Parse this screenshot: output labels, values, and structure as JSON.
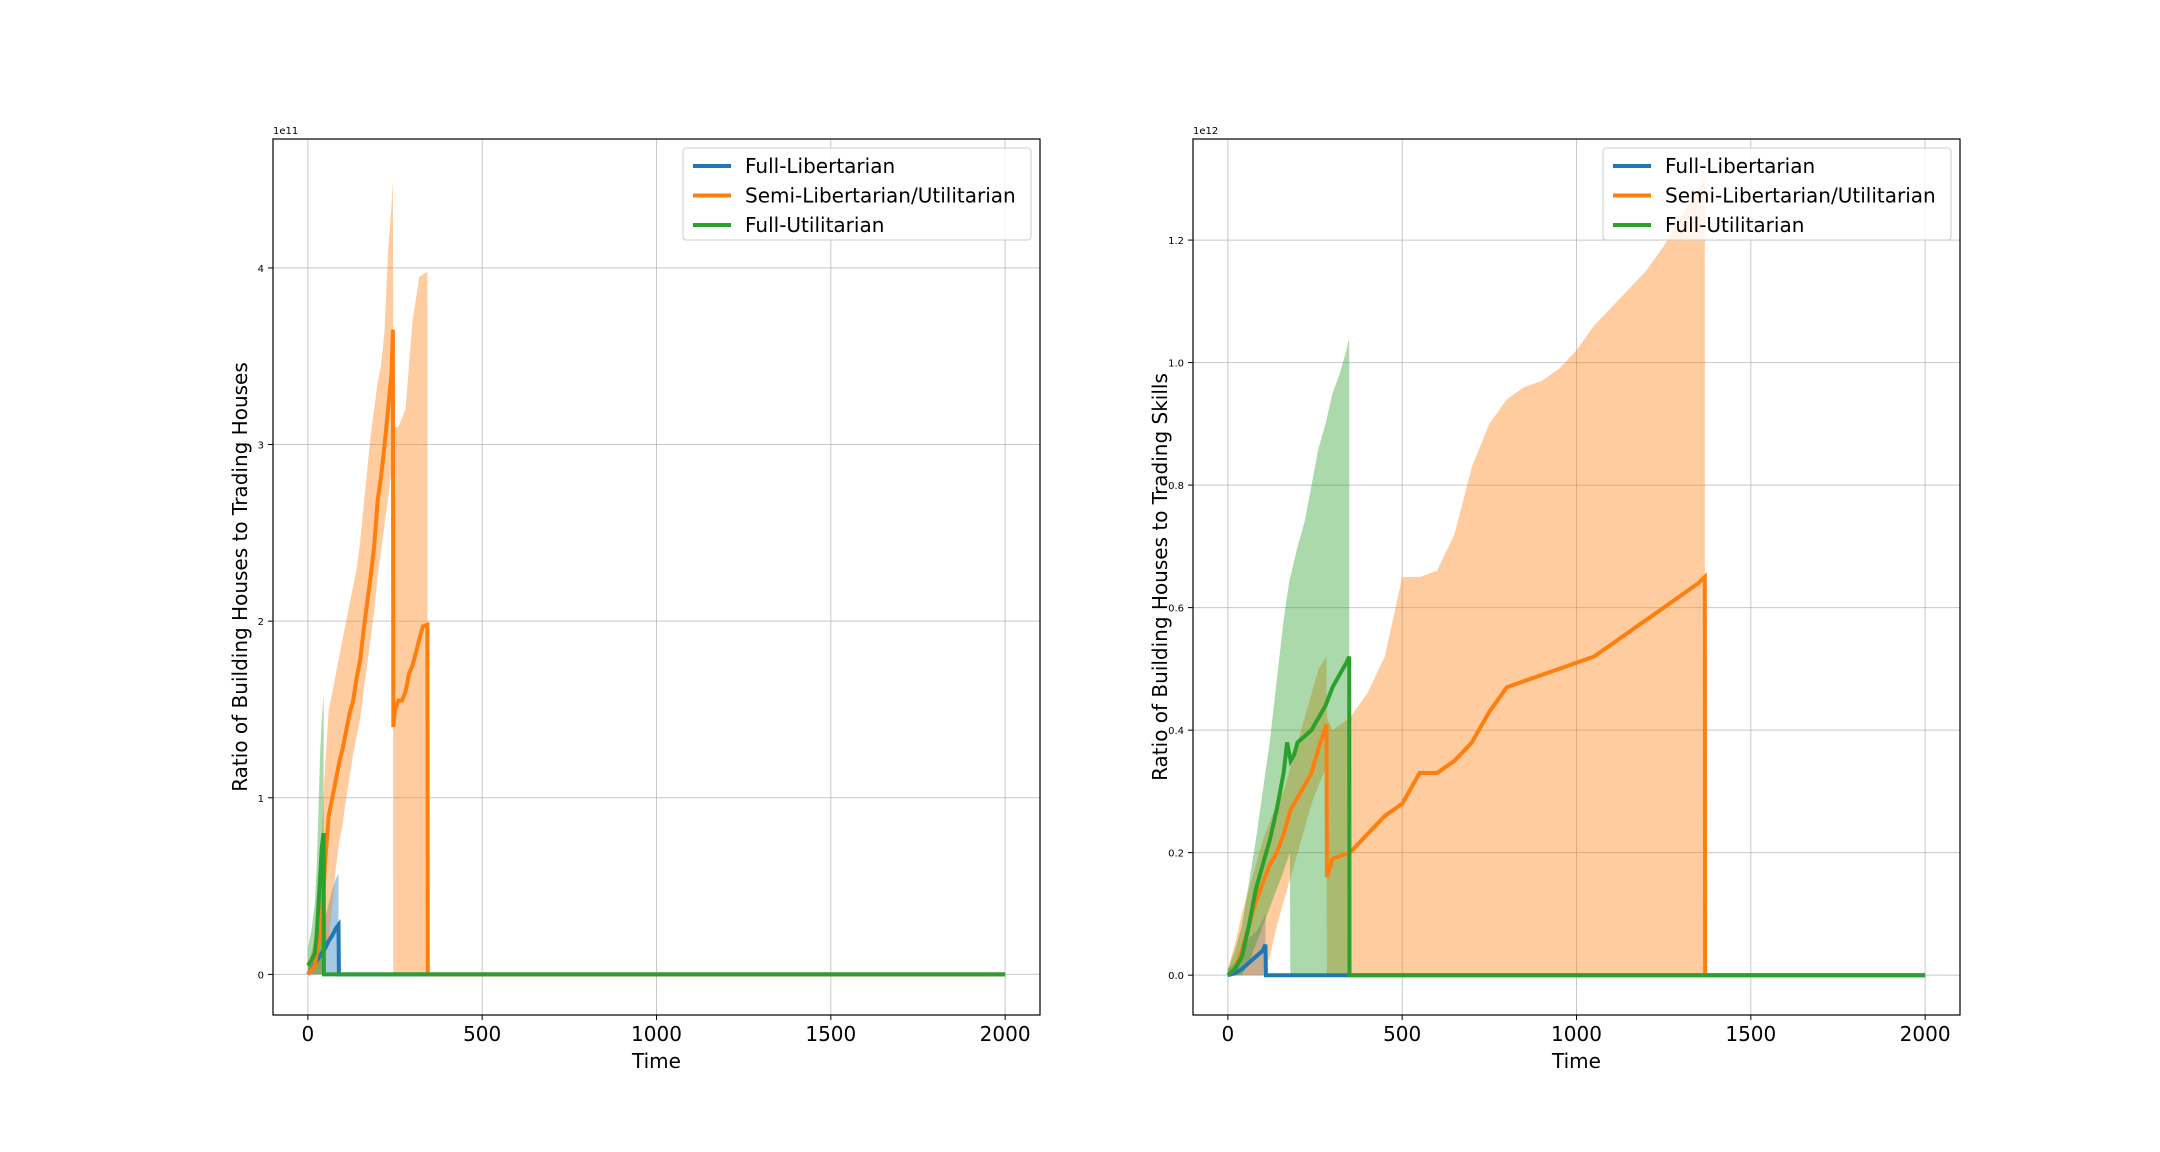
{
  "colors": {
    "series": [
      "#1f77b4",
      "#ff7f0e",
      "#2ca02c"
    ],
    "grid": "#b0b0b0",
    "frame": "#000000"
  },
  "chart_data": [
    {
      "type": "line",
      "xlabel": "Time",
      "ylabel": "Ratio of Building Houses to Trading Houses",
      "offset_text": "1e11",
      "y_scale": 100000000000,
      "xlim": [
        -100,
        2100
      ],
      "ylim": [
        -0.23,
        4.73
      ],
      "xticks": [
        0,
        500,
        1000,
        1500,
        2000
      ],
      "yticks": [
        0,
        1,
        2,
        3,
        4
      ],
      "xtick_labels": [
        "0",
        "500",
        "1000",
        "1500",
        "2000"
      ],
      "ytick_labels": [
        "0",
        "1",
        "2",
        "3",
        "4"
      ],
      "grid": true,
      "legend": "top-right",
      "series": [
        {
          "name": "Full-Libertarian",
          "x": [
            0,
            10,
            20,
            30,
            40,
            50,
            60,
            70,
            80,
            88,
            89,
            2000
          ],
          "y": [
            0,
            0.03,
            0.06,
            0.09,
            0.12,
            0.15,
            0.19,
            0.22,
            0.26,
            0.28,
            0,
            0
          ],
          "band": {
            "x": [
              0,
              10,
              20,
              30,
              40,
              50,
              60,
              70,
              80,
              88
            ],
            "lower": [
              0,
              0,
              0,
              0,
              0,
              0,
              0,
              0,
              0,
              0
            ],
            "upper": [
              0.05,
              0.1,
              0.15,
              0.2,
              0.25,
              0.32,
              0.4,
              0.48,
              0.54,
              0.57
            ]
          }
        },
        {
          "name": "Semi-Libertarian/Utilitarian",
          "x": [
            0,
            20,
            40,
            50,
            60,
            70,
            80,
            90,
            100,
            110,
            120,
            130,
            140,
            150,
            160,
            170,
            180,
            190,
            200,
            210,
            220,
            230,
            240,
            244,
            245,
            250,
            260,
            270,
            280,
            290,
            300,
            310,
            320,
            330,
            343,
            344,
            2000
          ],
          "y": [
            0,
            0.05,
            0.3,
            0.65,
            0.9,
            1.0,
            1.1,
            1.2,
            1.28,
            1.38,
            1.48,
            1.55,
            1.68,
            1.78,
            1.95,
            2.1,
            2.25,
            2.42,
            2.68,
            2.82,
            3.0,
            3.2,
            3.4,
            3.65,
            1.4,
            1.5,
            1.55,
            1.55,
            1.6,
            1.7,
            1.75,
            1.82,
            1.9,
            1.97,
            1.98,
            0,
            0
          ],
          "band": {
            "x": [
              0,
              20,
              40,
              50,
              60,
              70,
              80,
              90,
              100,
              110,
              120,
              130,
              140,
              150,
              160,
              170,
              180,
              190,
              200,
              210,
              220,
              230,
              240,
              244,
              245,
              260,
              280,
              300,
              320,
              343
            ],
            "lower": [
              0,
              0,
              0,
              0.1,
              0.2,
              0.4,
              0.6,
              0.75,
              0.85,
              1.0,
              1.12,
              1.25,
              1.35,
              1.45,
              1.6,
              1.75,
              1.9,
              2.05,
              2.25,
              2.4,
              2.55,
              2.7,
              2.85,
              2.9,
              0,
              0,
              0,
              0,
              0,
              0
            ],
            "upper": [
              0.05,
              0.2,
              0.8,
              1.2,
              1.5,
              1.6,
              1.7,
              1.8,
              1.9,
              2.0,
              2.1,
              2.2,
              2.3,
              2.45,
              2.65,
              2.85,
              3.05,
              3.2,
              3.35,
              3.45,
              3.65,
              4.1,
              4.35,
              4.5,
              3.1,
              3.1,
              3.2,
              3.7,
              3.95,
              3.98
            ]
          }
        },
        {
          "name": "Full-Utilitarian",
          "x": [
            0,
            10,
            20,
            25,
            30,
            35,
            40,
            45,
            46,
            2000
          ],
          "y": [
            0.05,
            0.08,
            0.12,
            0.22,
            0.38,
            0.55,
            0.72,
            0.8,
            0,
            0
          ],
          "band": {
            "x": [
              0,
              10,
              20,
              25,
              30,
              35,
              40,
              45
            ],
            "lower": [
              0,
              0,
              0,
              0,
              0,
              0,
              0,
              0
            ],
            "upper": [
              0.15,
              0.25,
              0.4,
              0.6,
              0.9,
              1.25,
              1.45,
              1.58
            ]
          }
        }
      ]
    },
    {
      "type": "line",
      "xlabel": "Time",
      "ylabel": "Ratio of Building Houses to Trading Skills",
      "offset_text": "1e12",
      "y_scale": 1000000000000,
      "xlim": [
        -100,
        2100
      ],
      "ylim": [
        -0.065,
        1.365
      ],
      "xticks": [
        0,
        500,
        1000,
        1500,
        2000
      ],
      "yticks": [
        0,
        0.2,
        0.4,
        0.6,
        0.8,
        1.0,
        1.2
      ],
      "xtick_labels": [
        "0",
        "500",
        "1000",
        "1500",
        "2000"
      ],
      "ytick_labels": [
        "0.0",
        "0.2",
        "0.4",
        "0.6",
        "0.8",
        "1.0",
        "1.2"
      ],
      "grid": true,
      "legend": "top-right",
      "series": [
        {
          "name": "Full-Libertarian",
          "x": [
            0,
            20,
            40,
            60,
            80,
            100,
            108,
            109,
            2000
          ],
          "y": [
            0,
            0.003,
            0.01,
            0.02,
            0.03,
            0.04,
            0.05,
            0,
            0
          ],
          "band": {
            "x": [
              0,
              20,
              40,
              60,
              80,
              100,
              108
            ],
            "lower": [
              0,
              0,
              0,
              0,
              0,
              0,
              0
            ],
            "upper": [
              0.01,
              0.02,
              0.04,
              0.06,
              0.07,
              0.09,
              0.1
            ]
          }
        },
        {
          "name": "Semi-Libertarian/Utilitarian",
          "x": [
            0,
            20,
            40,
            60,
            80,
            100,
            120,
            140,
            160,
            180,
            200,
            220,
            240,
            260,
            283,
            284,
            300,
            350,
            400,
            450,
            500,
            550,
            600,
            650,
            700,
            750,
            800,
            850,
            900,
            950,
            1000,
            1050,
            1100,
            1150,
            1200,
            1250,
            1300,
            1350,
            1368,
            1369,
            2000
          ],
          "y": [
            0,
            0.01,
            0.04,
            0.08,
            0.12,
            0.15,
            0.18,
            0.2,
            0.23,
            0.27,
            0.29,
            0.31,
            0.33,
            0.37,
            0.41,
            0.16,
            0.19,
            0.2,
            0.23,
            0.26,
            0.28,
            0.33,
            0.33,
            0.35,
            0.38,
            0.43,
            0.47,
            0.48,
            0.49,
            0.5,
            0.51,
            0.52,
            0.54,
            0.56,
            0.58,
            0.6,
            0.62,
            0.64,
            0.65,
            0,
            0
          ],
          "band": {
            "x": [
              0,
              20,
              40,
              60,
              80,
              100,
              120,
              140,
              160,
              180,
              200,
              220,
              240,
              260,
              283,
              284,
              300,
              350,
              400,
              450,
              500,
              550,
              600,
              650,
              700,
              750,
              800,
              850,
              900,
              950,
              1000,
              1050,
              1100,
              1150,
              1200,
              1250,
              1300,
              1350,
              1368
            ],
            "lower": [
              0,
              0,
              0,
              0,
              0,
              0,
              0.03,
              0.08,
              0.12,
              0.16,
              0.2,
              0.24,
              0.28,
              0.31,
              0.34,
              0,
              0,
              0,
              0,
              0,
              0,
              0,
              0,
              0,
              0,
              0,
              0,
              0,
              0,
              0,
              0,
              0,
              0,
              0,
              0,
              0,
              0,
              0,
              0
            ],
            "upper": [
              0.01,
              0.05,
              0.1,
              0.14,
              0.18,
              0.22,
              0.25,
              0.28,
              0.3,
              0.34,
              0.38,
              0.42,
              0.46,
              0.5,
              0.52,
              0.42,
              0.4,
              0.42,
              0.46,
              0.52,
              0.65,
              0.65,
              0.66,
              0.72,
              0.83,
              0.9,
              0.94,
              0.96,
              0.97,
              0.99,
              1.02,
              1.06,
              1.09,
              1.12,
              1.15,
              1.19,
              1.24,
              1.28,
              1.3
            ]
          }
        },
        {
          "name": "Full-Utilitarian",
          "x": [
            0,
            20,
            40,
            60,
            80,
            100,
            120,
            140,
            160,
            170,
            180,
            190,
            200,
            220,
            240,
            260,
            280,
            300,
            320,
            340,
            348,
            349,
            2000
          ],
          "y": [
            0,
            0.01,
            0.03,
            0.08,
            0.14,
            0.18,
            0.22,
            0.27,
            0.33,
            0.38,
            0.35,
            0.36,
            0.38,
            0.39,
            0.4,
            0.42,
            0.44,
            0.47,
            0.49,
            0.51,
            0.52,
            0,
            0
          ],
          "band": {
            "x": [
              0,
              20,
              40,
              60,
              80,
              100,
              120,
              140,
              160,
              178,
              179,
              200,
              220,
              240,
              260,
              280,
              300,
              320,
              340,
              348
            ],
            "lower": [
              0,
              0,
              0,
              0.02,
              0.05,
              0.08,
              0.11,
              0.14,
              0.17,
              0.2,
              0,
              0,
              0,
              0,
              0,
              0,
              0,
              0,
              0,
              0
            ],
            "upper": [
              0.01,
              0.04,
              0.08,
              0.15,
              0.22,
              0.3,
              0.38,
              0.48,
              0.58,
              0.65,
              0.65,
              0.7,
              0.74,
              0.8,
              0.86,
              0.9,
              0.95,
              0.98,
              1.02,
              1.04
            ]
          }
        }
      ]
    }
  ]
}
